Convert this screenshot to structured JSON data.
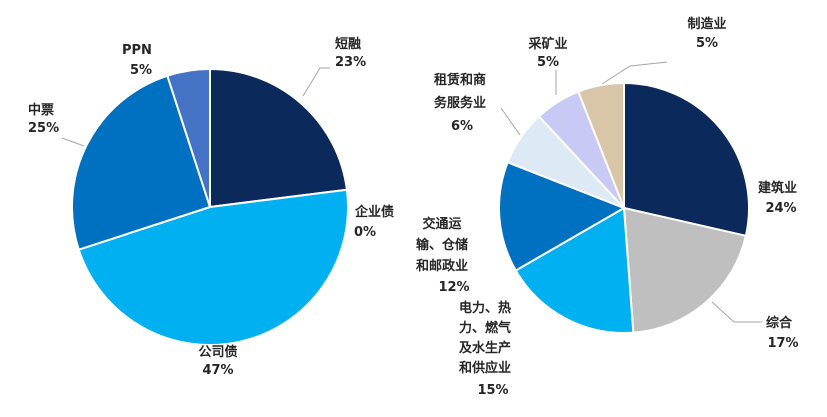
{
  "chart_data": [
    {
      "type": "pie",
      "title": "",
      "start_angle_deg": 0,
      "direction": "clockwise",
      "slices": [
        {
          "label": "短融",
          "percent_label": "23%",
          "value": 23,
          "color": "#0b2a5b"
        },
        {
          "label": "企业债",
          "percent_label": "0%",
          "value": 0,
          "color": "#1e6bb8"
        },
        {
          "label": "公司债",
          "percent_label": "47%",
          "value": 47,
          "color": "#00b0f0"
        },
        {
          "label": "中票",
          "percent_label": "25%",
          "value": 25,
          "color": "#0070c0"
        },
        {
          "label": "PPN",
          "percent_label": "5%",
          "value": 5,
          "color": "#4472c4"
        }
      ]
    },
    {
      "type": "pie",
      "title": "",
      "start_angle_deg": 0,
      "direction": "clockwise",
      "slices": [
        {
          "label": "建筑业",
          "percent_label": "24%",
          "value": 24,
          "color": "#0b2a5b"
        },
        {
          "label": "综合",
          "percent_label": "17%",
          "value": 17,
          "color": "#bfbfbf"
        },
        {
          "label": "电力、热力、燃气及水生产和供应业",
          "percent_label": "15%",
          "value": 15,
          "color": "#00b0f0"
        },
        {
          "label": "交通运输、仓储和邮政业",
          "percent_label": "12%",
          "value": 12,
          "color": "#0070c0"
        },
        {
          "label": "租赁和商务服务业",
          "percent_label": "6%",
          "value": 6,
          "color": "#dde9f5"
        },
        {
          "label": "采矿业",
          "percent_label": "5%",
          "value": 5,
          "color": "#c9c9f5"
        },
        {
          "label": "制造业",
          "percent_label": "5%",
          "value": 5,
          "color": "#d9c6a8"
        }
      ]
    }
  ]
}
